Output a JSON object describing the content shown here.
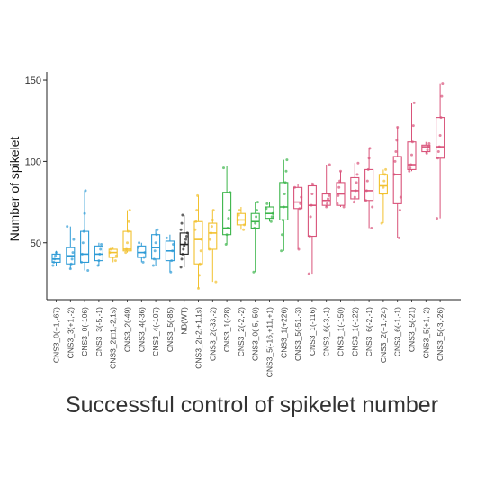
{
  "caption": "Successful control of spikelet number",
  "chart_data": {
    "type": "box",
    "title": "",
    "xlabel": "",
    "ylabel": "Number of spikelet",
    "ylim": [
      15,
      155
    ],
    "yticks": [
      50,
      100,
      150
    ],
    "grid": false,
    "legend": "none",
    "colors": {
      "CNS3_0": "#2e9bd6",
      "CNS3_2": "#f2c12e",
      "CNS3_4": "#2e9bd6",
      "NB": "#222222",
      "CNS3_1": "#3bb54a",
      "CNS3_5": "#d9537a",
      "CNS3_6": "#d9537a"
    },
    "categories": [
      {
        "label": "CNS3_0(+1,-67)",
        "color": "#2e9bd6",
        "min": 36,
        "q1": 38,
        "median": 40,
        "q3": 43,
        "max": 45,
        "points": [
          36,
          38,
          40,
          42,
          44
        ]
      },
      {
        "label": "CNS3_3(+1,-2)",
        "color": "#2e9bd6",
        "min": 34,
        "q1": 37,
        "median": 42,
        "q3": 47,
        "max": 60,
        "points": [
          34,
          37,
          40,
          44,
          52,
          60
        ]
      },
      {
        "label": "CNS3_0(-106)",
        "color": "#2e9bd6",
        "min": 33,
        "q1": 38,
        "median": 43,
        "q3": 57,
        "max": 82,
        "points": [
          33,
          38,
          43,
          50,
          57,
          68,
          82
        ]
      },
      {
        "label": "CNS3_3(-5,-1)",
        "color": "#2e9bd6",
        "min": 36,
        "q1": 39,
        "median": 43,
        "q3": 48,
        "max": 50,
        "points": [
          36,
          39,
          43,
          46,
          49
        ]
      },
      {
        "label": "CNS3_2(□1,-2,1s)",
        "color": "#f2c12e",
        "min": 38,
        "q1": 41,
        "median": 44,
        "q3": 46,
        "max": 47,
        "points": [
          39,
          42,
          44,
          46
        ]
      },
      {
        "label": "CNS3_2(-49)",
        "color": "#f2c12e",
        "min": 44,
        "q1": 45,
        "median": 46,
        "q3": 57,
        "max": 70,
        "points": [
          44,
          46,
          50,
          57,
          63,
          70
        ]
      },
      {
        "label": "CNS3_4(-36)",
        "color": "#2e9bd6",
        "min": 38,
        "q1": 41,
        "median": 44,
        "q3": 48,
        "max": 50,
        "points": [
          38,
          41,
          44,
          47,
          50
        ]
      },
      {
        "label": "CNS3_4(-107)",
        "color": "#2e9bd6",
        "min": 36,
        "q1": 40,
        "median": 47,
        "q3": 55,
        "max": 58,
        "points": [
          36,
          40,
          45,
          50,
          55,
          58
        ]
      },
      {
        "label": "CNS3_5(-85)",
        "color": "#2e9bd6",
        "min": 32,
        "q1": 39,
        "median": 45,
        "q3": 51,
        "max": 55,
        "points": [
          32,
          39,
          45,
          49,
          53
        ]
      },
      {
        "label": "NB(WT)",
        "color": "#222222",
        "min": 35,
        "q1": 43,
        "median": 49,
        "q3": 56,
        "max": 67,
        "points": [
          35,
          40,
          43,
          46,
          48,
          50,
          52,
          54,
          56,
          58,
          62,
          67
        ]
      },
      {
        "label": "CNS3_2(-2,+1,1s)",
        "color": "#f2c12e",
        "min": 22,
        "q1": 37,
        "median": 52,
        "q3": 63,
        "max": 79,
        "points": [
          22,
          30,
          37,
          45,
          52,
          58,
          63,
          70,
          79
        ]
      },
      {
        "label": "CNS3_2(-33,-2)",
        "color": "#f2c12e",
        "min": 26,
        "q1": 46,
        "median": 56,
        "q3": 62,
        "max": 70,
        "points": [
          26,
          46,
          52,
          56,
          60,
          64,
          70
        ]
      },
      {
        "label": "CNS3_1(-28)",
        "color": "#3bb54a",
        "min": 49,
        "q1": 55,
        "median": 59,
        "q3": 81,
        "max": 97,
        "points": [
          49,
          55,
          59,
          65,
          70,
          81,
          96
        ]
      },
      {
        "label": "CNS3_2(-2,-2)",
        "color": "#f2c12e",
        "min": 58,
        "q1": 61,
        "median": 64,
        "q3": 68,
        "max": 72,
        "points": [
          58,
          61,
          64,
          67,
          70
        ]
      },
      {
        "label": "CNS3_0(-5,-50)",
        "color": "#3bb54a",
        "min": 32,
        "q1": 59,
        "median": 63,
        "q3": 68,
        "max": 75,
        "points": [
          32,
          59,
          62,
          66,
          70,
          75
        ]
      },
      {
        "label": "CNS3_5(-16,+11,+1)",
        "color": "#3bb54a",
        "min": 63,
        "q1": 65,
        "median": 68,
        "q3": 72,
        "max": 75,
        "points": [
          63,
          66,
          68,
          71,
          74
        ]
      },
      {
        "label": "CNS3_1(+226)",
        "color": "#3bb54a",
        "min": 45,
        "q1": 64,
        "median": 72,
        "q3": 87,
        "max": 101,
        "points": [
          45,
          55,
          64,
          72,
          80,
          87,
          94,
          101
        ]
      },
      {
        "label": "CNS3_5(-51,-3)",
        "color": "#d9537a",
        "min": 46,
        "q1": 71,
        "median": 75,
        "q3": 84,
        "max": 86,
        "points": [
          46,
          71,
          74,
          78,
          84
        ]
      },
      {
        "label": "CNS3_1(-116)",
        "color": "#d9537a",
        "min": 31,
        "q1": 54,
        "median": 73,
        "q3": 85,
        "max": 87,
        "points": [
          31,
          54,
          66,
          73,
          80,
          86
        ]
      },
      {
        "label": "CNS3_6(-3,-1)",
        "color": "#d9537a",
        "min": 72,
        "q1": 73,
        "median": 76,
        "q3": 80,
        "max": 98,
        "points": [
          72,
          74,
          77,
          79,
          98
        ]
      },
      {
        "label": "CNS3_1(-150)",
        "color": "#d9537a",
        "min": 72,
        "q1": 73,
        "median": 80,
        "q3": 87,
        "max": 94,
        "points": [
          72,
          74,
          79,
          84,
          88,
          94
        ]
      },
      {
        "label": "CNS3_1(-122)",
        "color": "#d9537a",
        "min": 75,
        "q1": 77,
        "median": 82,
        "q3": 90,
        "max": 99,
        "points": [
          75,
          78,
          82,
          87,
          92,
          99
        ]
      },
      {
        "label": "CNS3_6(-2,-1)",
        "color": "#d9537a",
        "min": 59,
        "q1": 76,
        "median": 82,
        "q3": 95,
        "max": 108,
        "points": [
          59,
          72,
          76,
          82,
          88,
          95,
          102,
          108
        ]
      },
      {
        "label": "CNS3_2(+1,-24)",
        "color": "#f2c12e",
        "min": 62,
        "q1": 80,
        "median": 85,
        "q3": 92,
        "max": 95,
        "points": [
          62,
          80,
          84,
          88,
          92,
          95
        ]
      },
      {
        "label": "CNS3_6(-1,-1)",
        "color": "#d9537a",
        "min": 53,
        "q1": 74,
        "median": 92,
        "q3": 103,
        "max": 121,
        "points": [
          53,
          70,
          78,
          92,
          100,
          106,
          113,
          121
        ]
      },
      {
        "label": "CNS3_5(-21)",
        "color": "#d9537a",
        "min": 94,
        "q1": 95,
        "median": 98,
        "q3": 112,
        "max": 136,
        "points": [
          94,
          96,
          98,
          104,
          112,
          122,
          136
        ]
      },
      {
        "label": "CNS3_5(+1,-2)",
        "color": "#d9537a",
        "min": 105,
        "q1": 106,
        "median": 109,
        "q3": 110,
        "max": 112,
        "points": [
          105,
          107,
          109,
          111
        ]
      },
      {
        "label": "CNS3_5(-3,-26)",
        "color": "#d9537a",
        "min": 65,
        "q1": 102,
        "median": 109,
        "q3": 127,
        "max": 148,
        "points": [
          65,
          102,
          106,
          109,
          116,
          127,
          140,
          148
        ]
      }
    ]
  }
}
